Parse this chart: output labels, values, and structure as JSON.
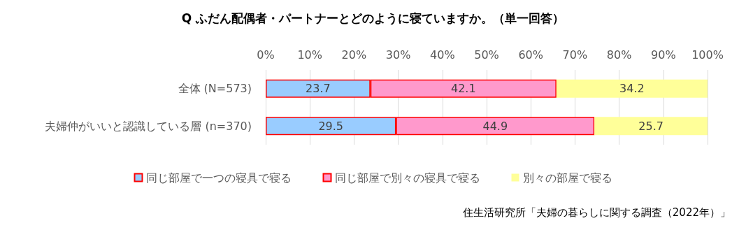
{
  "chart_data": {
    "type": "bar",
    "orientation": "horizontal",
    "stacked": true,
    "title": "Q ふだん配偶者・パートナーとどのように寝ていますか。（単一回答）",
    "categories": [
      "全体 (N=573)",
      "夫婦仲がいいと認識している層 (n=370)"
    ],
    "series": [
      {
        "name": "同じ部屋で一つの寝具で寝る",
        "color": "#99ccff",
        "values": [
          23.7,
          29.5
        ]
      },
      {
        "name": "同じ部屋で別々の寝具で寝る",
        "color": "#ff99cc",
        "values": [
          42.1,
          44.9
        ]
      },
      {
        "name": "別々の部屋で寝る",
        "color": "#ffff99",
        "values": [
          34.2,
          25.7
        ]
      }
    ],
    "data_labels": true,
    "xlim": [
      0,
      100
    ],
    "xticks": [
      {
        "value": 0,
        "label": "0%"
      },
      {
        "value": 10,
        "label": "10%"
      },
      {
        "value": 20,
        "label": "20%"
      },
      {
        "value": 30,
        "label": "30%"
      },
      {
        "value": 40,
        "label": "40%"
      },
      {
        "value": 50,
        "label": "50%"
      },
      {
        "value": 60,
        "label": "60%"
      },
      {
        "value": 70,
        "label": "70%"
      },
      {
        "value": 80,
        "label": "80%"
      },
      {
        "value": 90,
        "label": "90%"
      },
      {
        "value": 100,
        "label": "100%"
      }
    ],
    "grid": "x",
    "legend": "bottom",
    "annotations": [
      "住生活研究所「夫婦の暮らしに関する調査（2022年）」"
    ]
  }
}
